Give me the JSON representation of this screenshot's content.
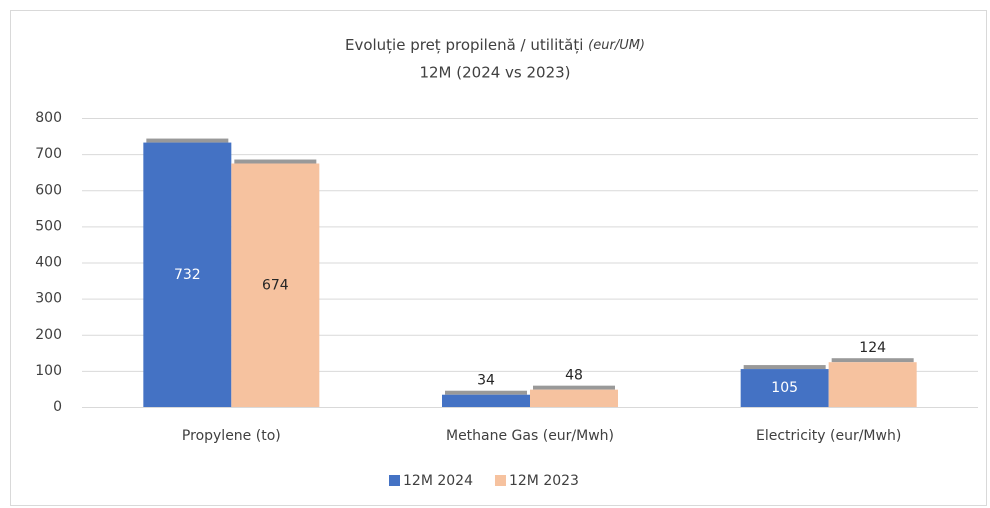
{
  "chart_data": {
    "type": "bar",
    "title": "Evoluție preț propilenă / utilități",
    "title_unit": "(eur/UM)",
    "subtitle": "12M (2024 vs 2023)",
    "categories": [
      "Propylene (to)",
      "Methane Gas (eur/Mwh)",
      "Electricity (eur/Mwh)"
    ],
    "series": [
      {
        "name": "12M 2024",
        "color": "#4472c4",
        "values": [
          732,
          34,
          105
        ]
      },
      {
        "name": "12M 2023",
        "color": "#f6c29f",
        "values": [
          674,
          48,
          124
        ]
      }
    ],
    "ylim": [
      0,
      800
    ],
    "yticks": [
      0,
      100,
      200,
      300,
      400,
      500,
      600,
      700,
      800
    ],
    "grid": true,
    "legend": "bottom"
  }
}
